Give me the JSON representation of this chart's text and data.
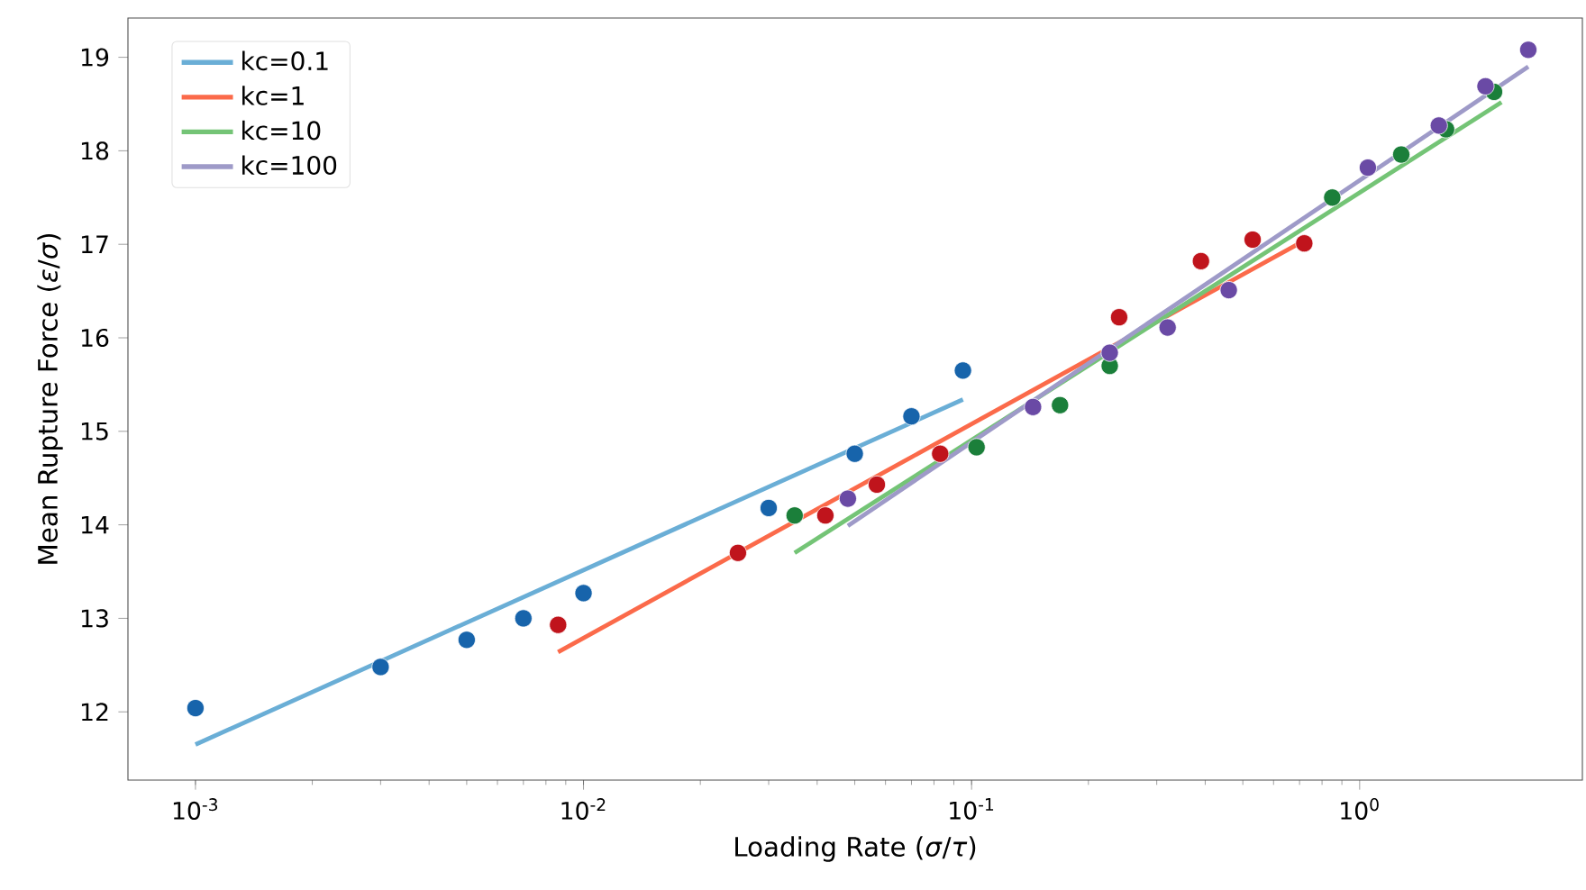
{
  "chart_data": {
    "type": "scatter",
    "xlabel": "Loading Rate (*σ*/*τ*)",
    "ylabel": "Mean Rupture Force (*ε*/*σ*)",
    "log": "x",
    "xlim": [
      0.00067,
      3.75
    ],
    "ylim": [
      11.27,
      19.42
    ],
    "xticks": [
      {
        "value": 0.001,
        "label": "10$^{-3}$"
      },
      {
        "value": 0.01,
        "label": "10$^{-2}$"
      },
      {
        "value": 0.1,
        "label": "10$^{-1}$"
      },
      {
        "value": 1,
        "label": "10$^{0}$"
      }
    ],
    "yticks": [
      12,
      13,
      14,
      15,
      16,
      17,
      18,
      19
    ],
    "grid": false,
    "legend": "top left",
    "series": [
      {
        "name": "kc=0.1",
        "type": "line",
        "color": "#6aaed6",
        "marker": "none",
        "x": [
          0.001,
          0.095
        ],
        "values": [
          11.65,
          15.34
        ]
      },
      {
        "name": "kc=1",
        "type": "line",
        "color": "#fb6a4a",
        "marker": "none",
        "x": [
          0.0086,
          0.72
        ],
        "values": [
          12.64,
          17.04
        ]
      },
      {
        "name": "kc=10",
        "type": "line",
        "color": "#74c476",
        "marker": "none",
        "x": [
          0.035,
          2.32
        ],
        "values": [
          13.7,
          18.52
        ]
      },
      {
        "name": "kc=100",
        "type": "line",
        "color": "#9e9ac8",
        "marker": "none",
        "x": [
          0.048,
          2.72
        ],
        "values": [
          13.99,
          18.9
        ]
      },
      {
        "color": "#1764ab",
        "marker": "circle",
        "x": [
          0.001,
          0.003,
          0.005,
          0.007,
          0.01,
          0.03,
          0.05,
          0.07,
          0.095
        ],
        "values": [
          12.04,
          12.48,
          12.77,
          13.0,
          13.27,
          14.18,
          14.76,
          15.16,
          15.65
        ]
      },
      {
        "color": "#c0141c",
        "marker": "circle",
        "x": [
          0.0086,
          0.025,
          0.042,
          0.057,
          0.083,
          0.24,
          0.39,
          0.53,
          0.72
        ],
        "values": [
          12.93,
          13.7,
          14.1,
          14.43,
          14.76,
          16.22,
          16.82,
          17.05,
          17.01
        ]
      },
      {
        "color": "#1b7f3a",
        "marker": "circle",
        "x": [
          0.035,
          0.103,
          0.169,
          0.227,
          0.32,
          0.85,
          1.28,
          1.67,
          2.22
        ],
        "values": [
          14.1,
          14.83,
          15.28,
          15.7,
          null,
          17.5,
          17.96,
          18.23,
          18.63
        ]
      },
      {
        "color": "#6a4aa5",
        "marker": "circle",
        "x": [
          0.048,
          0.144,
          0.227,
          0.32,
          0.46,
          1.05,
          1.6,
          2.11,
          2.72
        ],
        "values": [
          14.28,
          15.26,
          15.84,
          16.11,
          16.51,
          17.82,
          18.27,
          18.69,
          19.08
        ]
      }
    ]
  }
}
